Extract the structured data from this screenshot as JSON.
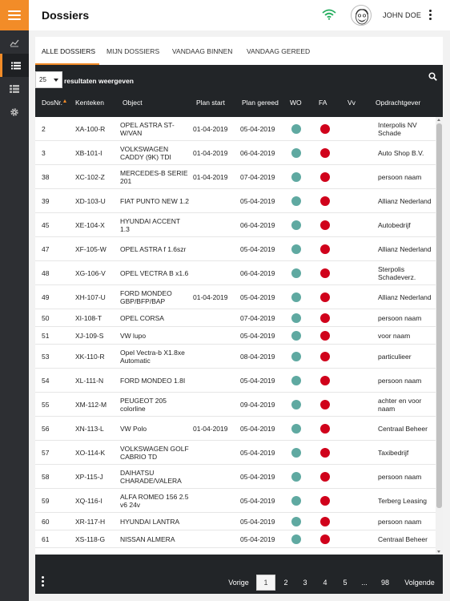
{
  "header": {
    "title": "Dossiers",
    "user_name": "JOHN DOE"
  },
  "colors": {
    "accent": "#f28c28",
    "dark": "#222528",
    "wo_dot": "#5fa9a1",
    "fa_dot": "#d0021b"
  },
  "sidebar": {
    "items": [
      {
        "icon": "chart-line-icon",
        "active": false
      },
      {
        "icon": "list-icon",
        "active": true
      },
      {
        "icon": "table-list-icon",
        "active": false
      },
      {
        "icon": "gear-icon",
        "active": false
      }
    ]
  },
  "tabs": [
    {
      "label": "ALLE DOSSIERS",
      "active": true
    },
    {
      "label": "MIJN DOSSIERS",
      "active": false
    },
    {
      "label": "VANDAAG BINNEN",
      "active": false
    },
    {
      "label": "VANDAAG GEREED",
      "active": false
    }
  ],
  "toolbar": {
    "page_size": "25",
    "page_size_label": "resultaten weergeven"
  },
  "table": {
    "columns": [
      {
        "key": "dosnr",
        "label": "DosNr."
      },
      {
        "key": "kenteken",
        "label": "Kenteken"
      },
      {
        "key": "object",
        "label": "Object"
      },
      {
        "key": "plan_start",
        "label": "Plan start"
      },
      {
        "key": "plan_gereed",
        "label": "Plan gereed"
      },
      {
        "key": "wo",
        "label": "WO"
      },
      {
        "key": "fa",
        "label": "FA"
      },
      {
        "key": "vv",
        "label": "Vv"
      },
      {
        "key": "opdrachtgever",
        "label": "Opdrachtgever"
      }
    ],
    "rows": [
      {
        "dosnr": "2",
        "kenteken": "XA-100-R",
        "object": "OPEL ASTRA ST-W/VAN",
        "plan_start": "01-04-2019",
        "plan_gereed": "05-04-2019",
        "opdrachtgever": "Interpolis NV Schade"
      },
      {
        "dosnr": "3",
        "kenteken": "XB-101-I",
        "object": "VOLKSWAGEN CADDY (9K) TDI",
        "plan_start": "01-04-2019",
        "plan_gereed": "06-04-2019",
        "opdrachtgever": "Auto Shop B.V."
      },
      {
        "dosnr": "38",
        "kenteken": "XC-102-Z",
        "object": "MERCEDES-B SERIE 201",
        "plan_start": "01-04-2019",
        "plan_gereed": "07-04-2019",
        "opdrachtgever": "persoon naam"
      },
      {
        "dosnr": "39",
        "kenteken": "XD-103-U",
        "object": "FIAT PUNTO NEW 1.2",
        "plan_start": "",
        "plan_gereed": "05-04-2019",
        "opdrachtgever": "Allianz Nederland"
      },
      {
        "dosnr": "45",
        "kenteken": "XE-104-X",
        "object": "HYUNDAI ACCENT 1.3",
        "plan_start": "",
        "plan_gereed": "06-04-2019",
        "opdrachtgever": "Autobedrijf"
      },
      {
        "dosnr": "47",
        "kenteken": "XF-105-W",
        "object": "OPEL ASTRA f 1.6szr",
        "plan_start": "",
        "plan_gereed": "05-04-2019",
        "opdrachtgever": "Allianz Nederland"
      },
      {
        "dosnr": "48",
        "kenteken": "XG-106-V",
        "object": "OPEL VECTRA B x1.6",
        "plan_start": "",
        "plan_gereed": "06-04-2019",
        "opdrachtgever": "Sterpolis Schadeverz."
      },
      {
        "dosnr": "49",
        "kenteken": "XH-107-U",
        "object": "FORD MONDEO GBP/BFP/BAP",
        "plan_start": "01-04-2019",
        "plan_gereed": "05-04-2019",
        "opdrachtgever": "Allianz Nederland"
      },
      {
        "dosnr": "50",
        "kenteken": "XI-108-T",
        "object": "OPEL CORSA",
        "plan_start": "",
        "plan_gereed": "07-04-2019",
        "opdrachtgever": "persoon naam"
      },
      {
        "dosnr": "51",
        "kenteken": "XJ-109-S",
        "object": "VW lupo",
        "plan_start": "",
        "plan_gereed": "05-04-2019",
        "opdrachtgever": "voor naam"
      },
      {
        "dosnr": "53",
        "kenteken": "XK-110-R",
        "object": "Opel Vectra-b X1.8xe Automatic",
        "plan_start": "",
        "plan_gereed": "08-04-2019",
        "opdrachtgever": "particulieer"
      },
      {
        "dosnr": "54",
        "kenteken": "XL-111-N",
        "object": "FORD MONDEO 1.8I",
        "plan_start": "",
        "plan_gereed": "05-04-2019",
        "opdrachtgever": "persoon naam"
      },
      {
        "dosnr": "55",
        "kenteken": "XM-112-M",
        "object": "PEUGEOT 205 colorline",
        "plan_start": "",
        "plan_gereed": "09-04-2019",
        "opdrachtgever": "achter en voor naam"
      },
      {
        "dosnr": "56",
        "kenteken": "XN-113-L",
        "object": "VW Polo",
        "plan_start": "01-04-2019",
        "plan_gereed": "05-04-2019",
        "opdrachtgever": "Centraal Beheer"
      },
      {
        "dosnr": "57",
        "kenteken": "XO-114-K",
        "object": "VOLKSWAGEN GOLF CABRIO TD",
        "plan_start": "",
        "plan_gereed": "05-04-2019",
        "opdrachtgever": "Taxibedrijf"
      },
      {
        "dosnr": "58",
        "kenteken": "XP-115-J",
        "object": "DAIHATSU CHARADE/VALERA",
        "plan_start": "",
        "plan_gereed": "05-04-2019",
        "opdrachtgever": "persoon naam"
      },
      {
        "dosnr": "59",
        "kenteken": "XQ-116-I",
        "object": "ALFA ROMEO 156 2.5 v6 24v",
        "plan_start": "",
        "plan_gereed": "05-04-2019",
        "opdrachtgever": "Terberg Leasing"
      },
      {
        "dosnr": "60",
        "kenteken": "XR-117-H",
        "object": "HYUNDAI LANTRA",
        "plan_start": "",
        "plan_gereed": "05-04-2019",
        "opdrachtgever": "persoon naam"
      },
      {
        "dosnr": "61",
        "kenteken": "XS-118-G",
        "object": "NISSAN ALMERA",
        "plan_start": "",
        "plan_gereed": "05-04-2019",
        "opdrachtgever": "Centraal Beheer"
      }
    ]
  },
  "pagination": {
    "prev_label": "Vorige",
    "pages": [
      "1",
      "2",
      "3",
      "4",
      "5"
    ],
    "ellipsis": "...",
    "last_page": "98",
    "next_label": "Volgende",
    "current": "1"
  }
}
